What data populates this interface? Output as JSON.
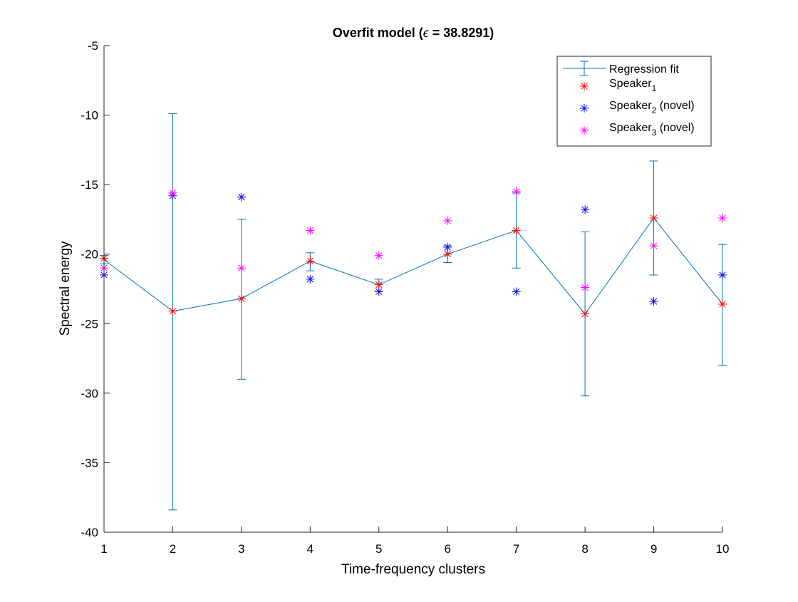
{
  "chart_data": {
    "type": "scatter",
    "title_prefix": "Overfit model (",
    "title_symbol": "ϵ",
    "title_suffix": " = 38.8291)",
    "xlabel": "Time-frequency clusters",
    "ylabel": "Spectral energy",
    "xlim": [
      1,
      10
    ],
    "ylim": [
      -40,
      -5
    ],
    "xticks": [
      "1",
      "2",
      "3",
      "4",
      "5",
      "6",
      "7",
      "8",
      "9",
      "10"
    ],
    "yticks": [
      "-5",
      "-10",
      "-15",
      "-20",
      "-25",
      "-30",
      "-35",
      "-40"
    ],
    "grid": false,
    "legend_position": "top-right",
    "fit": {
      "x": [
        1,
        2,
        3,
        4,
        5,
        6,
        7,
        8,
        9,
        10
      ],
      "y": [
        -20.4,
        -24.1,
        -23.2,
        -20.5,
        -22.2,
        -20.0,
        -18.3,
        -24.3,
        -17.4,
        -23.6
      ],
      "err_low": [
        -20.7,
        -38.4,
        -29.0,
        -21.2,
        -22.7,
        -20.6,
        -21.0,
        -30.2,
        -21.5,
        -28.0
      ],
      "err_high": [
        -20.1,
        -9.9,
        -17.5,
        -19.9,
        -21.8,
        -19.4,
        -15.6,
        -18.4,
        -13.3,
        -19.3
      ]
    },
    "series": [
      {
        "key": "s1",
        "name_base": "Speaker",
        "name_sub": "1",
        "name_suffix": "",
        "color": "#ff0000",
        "values": [
          -20.3,
          -24.1,
          -23.2,
          -20.5,
          -22.2,
          -20.0,
          -18.3,
          -24.3,
          -17.4,
          -23.6
        ]
      },
      {
        "key": "s2",
        "name_base": "Speaker",
        "name_sub": "2",
        "name_suffix": " (novel)",
        "color": "#0000ff",
        "values": [
          -21.5,
          -15.8,
          -15.9,
          -21.8,
          -22.7,
          -19.5,
          -22.7,
          -16.8,
          -23.4,
          -21.5
        ]
      },
      {
        "key": "s3",
        "name_base": "Speaker",
        "name_sub": "3",
        "name_suffix": " (novel)",
        "color": "#ff00ff",
        "values": [
          -21.0,
          -15.6,
          -21.0,
          -18.3,
          -20.1,
          -17.6,
          -15.5,
          -22.4,
          -19.4,
          -17.4
        ]
      }
    ],
    "fit_label": "Regression fit",
    "fit_color": "#0072bd"
  }
}
